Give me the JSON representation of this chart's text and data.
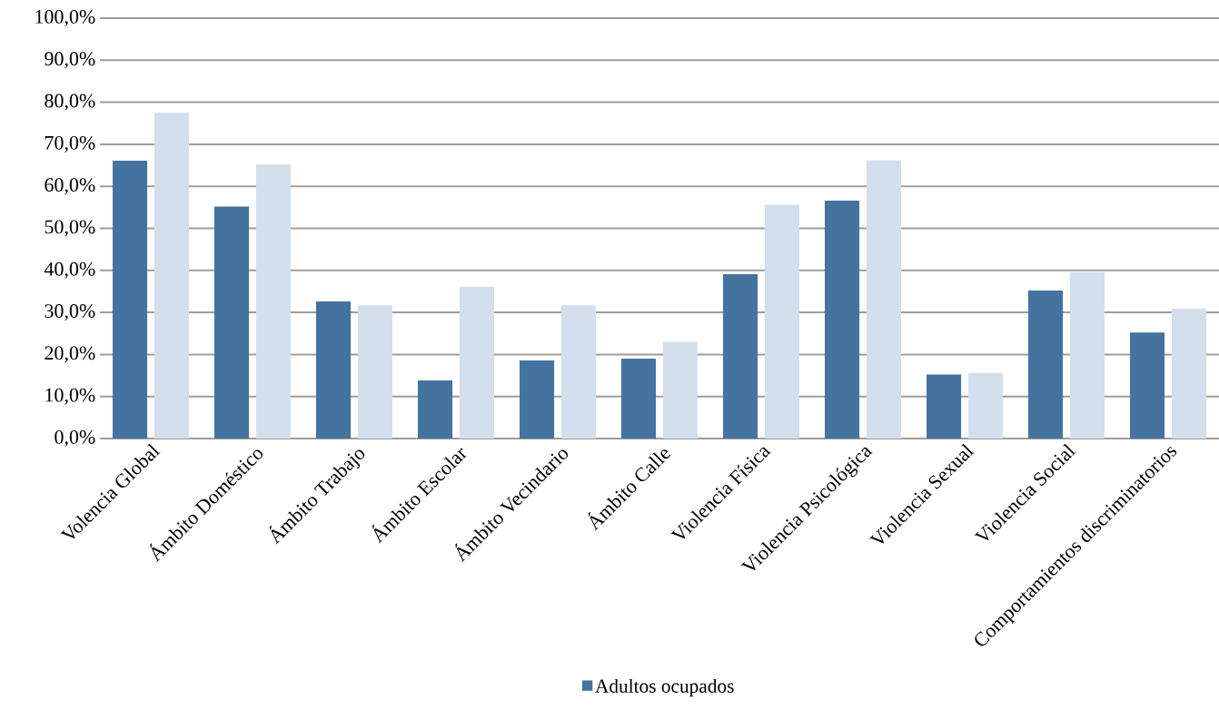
{
  "chart_data": {
    "type": "bar",
    "categories": [
      "Volencia Global",
      "Ámbito Doméstico",
      "Ámbito Trabajo",
      "Ámbito Escolar",
      "Ámbito Vecindario",
      "Ámbito Calle",
      "Violencia Física",
      "Violencia Psicológica",
      "Violencia Sexual",
      "Violencia Social",
      "Comportamientos discriminatorios"
    ],
    "series": [
      {
        "name": "Adultos ocupados",
        "color": "#4473a0",
        "values": [
          66.1,
          55.2,
          32.6,
          13.8,
          18.6,
          19.0,
          39.1,
          56.6,
          15.2,
          35.2,
          25.2
        ]
      },
      {
        "color": "#d3dfed",
        "values": [
          77.5,
          65.2,
          31.7,
          36.1,
          31.7,
          23.0,
          55.6,
          66.2,
          15.6,
          39.6,
          30.9
        ]
      }
    ],
    "ylim": [
      0,
      100
    ],
    "yticks": [
      {
        "value": 0,
        "label": "0,0%"
      },
      {
        "value": 10,
        "label": "10,0%"
      },
      {
        "value": 20,
        "label": "20,0%"
      },
      {
        "value": 30,
        "label": "30,0%"
      },
      {
        "value": 40,
        "label": "40,0%"
      },
      {
        "value": 50,
        "label": "50,0%"
      },
      {
        "value": 60,
        "label": "60,0%"
      },
      {
        "value": 70,
        "label": "70,0%"
      },
      {
        "value": 80,
        "label": "80,0%"
      },
      {
        "value": 90,
        "label": "90,0%"
      },
      {
        "value": 100,
        "label": "100,0%"
      }
    ],
    "grid": "y",
    "legend": "bottom"
  }
}
